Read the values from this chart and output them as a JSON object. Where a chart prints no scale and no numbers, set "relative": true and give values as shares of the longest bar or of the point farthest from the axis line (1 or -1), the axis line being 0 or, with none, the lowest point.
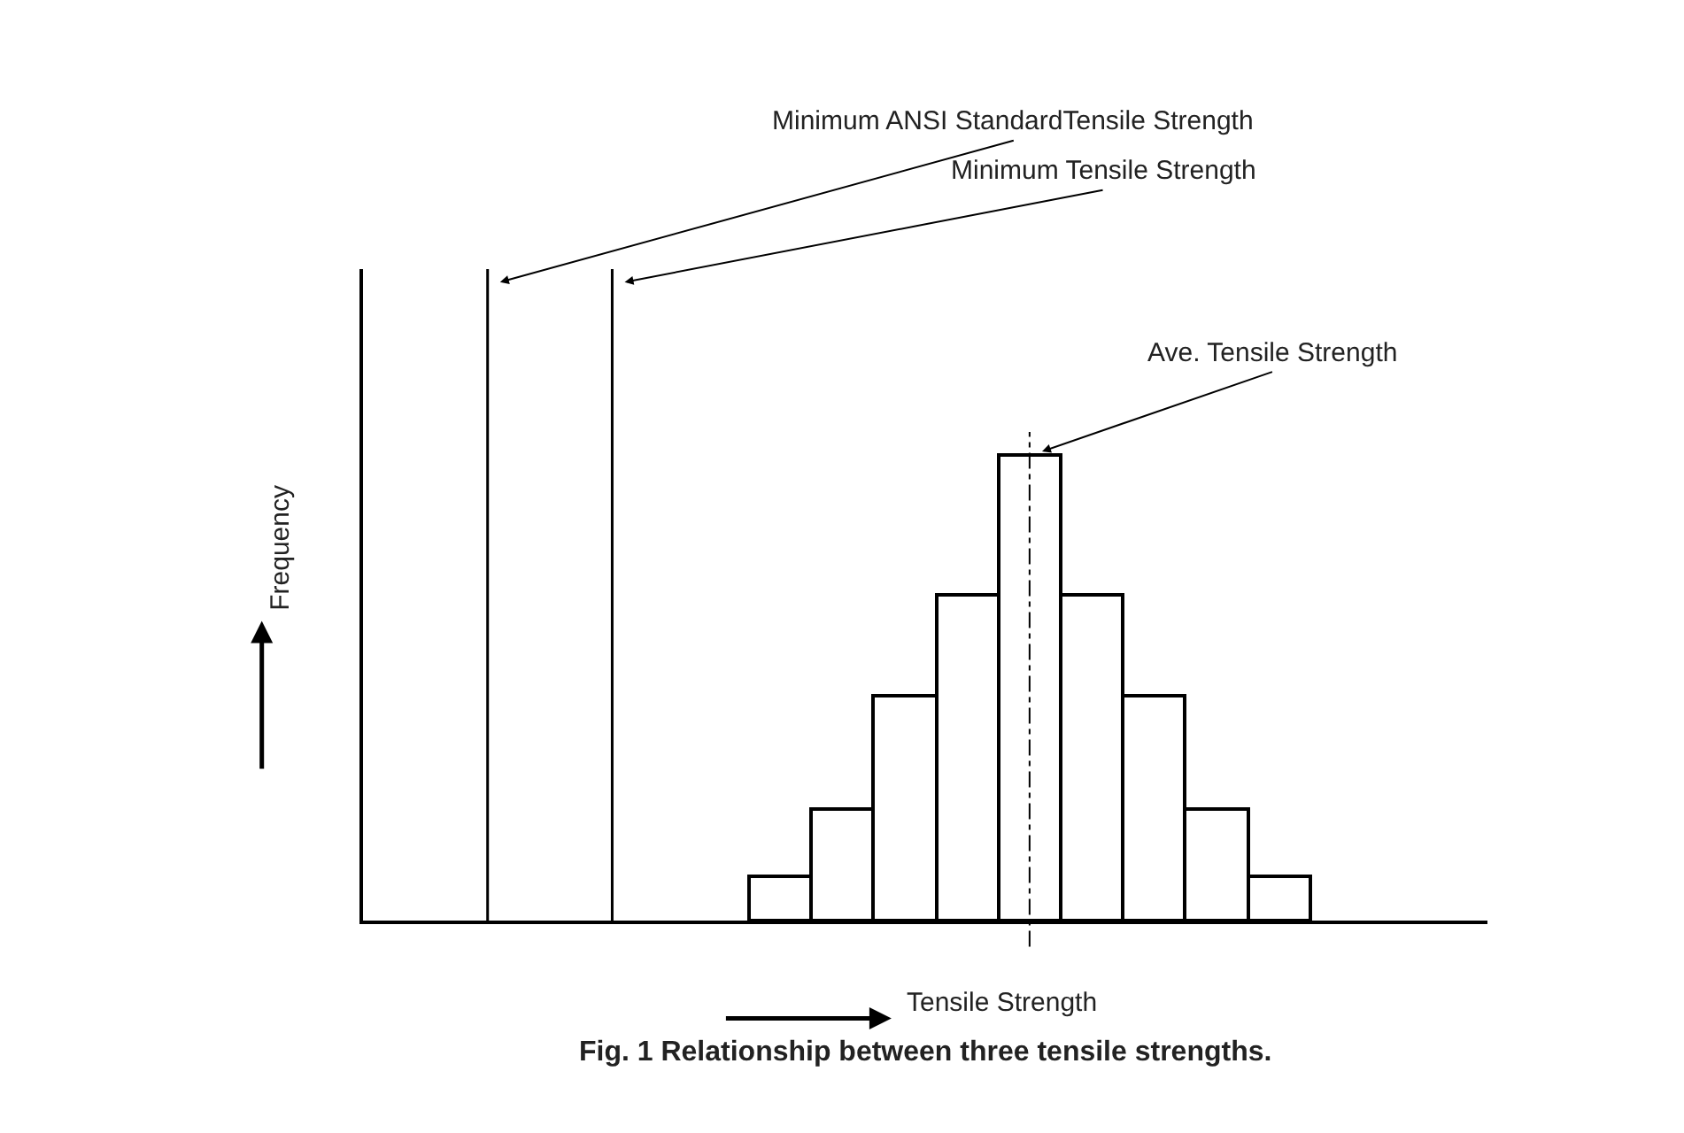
{
  "chart_data": {
    "type": "bar",
    "relative": true,
    "title": "Fig. 1 Relationship between three tensile strengths.",
    "xlabel": "Tensile Strength",
    "categories": [
      null,
      null,
      null,
      null,
      null,
      null,
      null,
      null,
      null
    ],
    "color": "#ffffff",
    "values": [
      0.095,
      0.24,
      0.485,
      0.7,
      1,
      0.7,
      0.485,
      0.24,
      0.095
    ],
    "annotations": [
      "Minimum ANSI StandardTensile Strength",
      "Minimum Tensile Strength",
      "Ave. Tensile Strength",
      "Frequency"
    ]
  }
}
